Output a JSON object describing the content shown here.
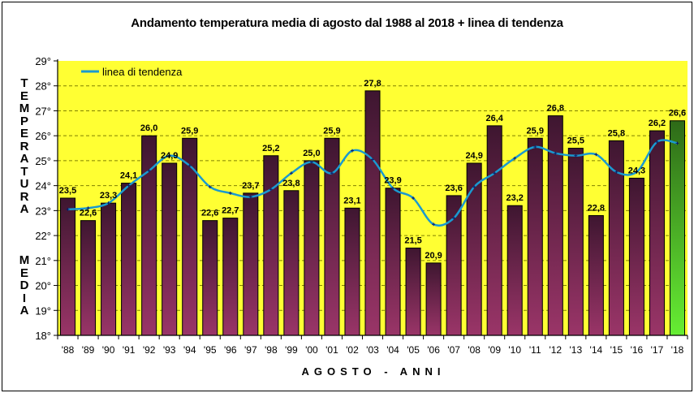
{
  "chart_data": {
    "type": "bar",
    "title": "Andamento temperatura media di agosto dal 1988 al 2018 + linea di tendenza",
    "xlabel": "AGOSTO - ANNI",
    "ylabel_lines": [
      "TEMPERATURA",
      "MEDIA"
    ],
    "ylim": [
      18,
      29
    ],
    "yticks": [
      "18°",
      "19°",
      "20°",
      "21°",
      "22°",
      "23°",
      "24°",
      "25°",
      "26°",
      "27°",
      "28°",
      "29°"
    ],
    "grid": true,
    "legend": {
      "position": "top-left",
      "entries": [
        "linea di tendenza"
      ]
    },
    "categories": [
      "'88",
      "'89",
      "'90",
      "'91",
      "'92",
      "'93",
      "'94",
      "'95",
      "'96",
      "'97",
      "'98",
      "'99",
      "'00",
      "'01",
      "'02",
      "'03",
      "'04",
      "'05",
      "'06",
      "'07",
      "'08",
      "'09",
      "'10",
      "'11",
      "'12",
      "'13",
      "'14",
      "'15",
      "'16",
      "'17",
      "'18"
    ],
    "series": [
      {
        "name": "Temperatura media agosto",
        "type": "bar",
        "values": [
          23.5,
          22.6,
          23.3,
          24.1,
          26.0,
          24.9,
          25.9,
          22.6,
          22.7,
          23.7,
          25.2,
          23.8,
          25.0,
          25.9,
          23.1,
          27.8,
          23.9,
          21.5,
          20.9,
          23.6,
          24.9,
          26.4,
          23.2,
          25.9,
          26.8,
          25.5,
          22.8,
          25.8,
          24.3,
          26.2,
          26.6
        ],
        "data_labels": [
          "23,5",
          "22,6",
          "23,3",
          "24,1",
          "26,0",
          "24,9",
          "25,9",
          "22,6",
          "22,7",
          "23,7",
          "25,2",
          "23,8",
          "25,0",
          "25,9",
          "23,1",
          "27,8",
          "23,9",
          "21,5",
          "20,9",
          "23,6",
          "24,9",
          "26,4",
          "23,2",
          "25,9",
          "26,8",
          "25,5",
          "22,8",
          "25,8",
          "24,3",
          "26,2",
          "26,6"
        ],
        "highlight_last": true
      },
      {
        "name": "linea di tendenza",
        "type": "line",
        "values": [
          23.05,
          23.1,
          23.3,
          24.0,
          24.6,
          25.2,
          24.8,
          23.95,
          23.7,
          23.55,
          23.85,
          24.5,
          24.95,
          24.5,
          25.4,
          25.05,
          23.9,
          23.5,
          22.45,
          22.7,
          23.95,
          24.5,
          25.1,
          25.55,
          25.3,
          25.2,
          25.25,
          24.55,
          24.55,
          25.75,
          25.7
        ]
      }
    ]
  },
  "colors": {
    "plot_background": "#ffff33",
    "bar_top": "#3e1630",
    "bar_bottom": "#9a3568",
    "highlight_top": "#2e6a18",
    "highlight_bottom": "#66ee33",
    "trend_line": "#1a9ad0",
    "grid": "#808000"
  }
}
